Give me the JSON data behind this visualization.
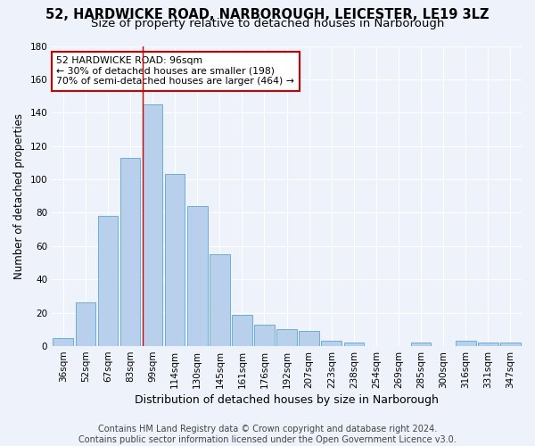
{
  "title1": "52, HARDWICKE ROAD, NARBOROUGH, LEICESTER, LE19 3LZ",
  "title2": "Size of property relative to detached houses in Narborough",
  "xlabel": "Distribution of detached houses by size in Narborough",
  "ylabel": "Number of detached properties",
  "categories": [
    "36sqm",
    "52sqm",
    "67sqm",
    "83sqm",
    "99sqm",
    "114sqm",
    "130sqm",
    "145sqm",
    "161sqm",
    "176sqm",
    "192sqm",
    "207sqm",
    "223sqm",
    "238sqm",
    "254sqm",
    "269sqm",
    "285sqm",
    "300sqm",
    "316sqm",
    "331sqm",
    "347sqm"
  ],
  "values": [
    5,
    26,
    78,
    113,
    145,
    103,
    84,
    55,
    19,
    13,
    10,
    9,
    3,
    2,
    0,
    0,
    2,
    0,
    3,
    2,
    2
  ],
  "bar_color": "#b8d0eb",
  "bar_edge_color": "#6aaed6",
  "vline_color": "#cc0000",
  "annotation_text": "52 HARDWICKE ROAD: 96sqm\n← 30% of detached houses are smaller (198)\n70% of semi-detached houses are larger (464) →",
  "annotation_box_color": "#ffffff",
  "annotation_box_edge": "#cc0000",
  "ylim": [
    0,
    180
  ],
  "yticks": [
    0,
    20,
    40,
    60,
    80,
    100,
    120,
    140,
    160,
    180
  ],
  "footer1": "Contains HM Land Registry data © Crown copyright and database right 2024.",
  "footer2": "Contains public sector information licensed under the Open Government Licence v3.0.",
  "background_color": "#edf2fb",
  "grid_color": "#ffffff",
  "title1_fontsize": 10.5,
  "title2_fontsize": 9.5,
  "xlabel_fontsize": 9,
  "ylabel_fontsize": 8.5,
  "tick_fontsize": 7.5,
  "annotation_fontsize": 7.8,
  "footer_fontsize": 7
}
